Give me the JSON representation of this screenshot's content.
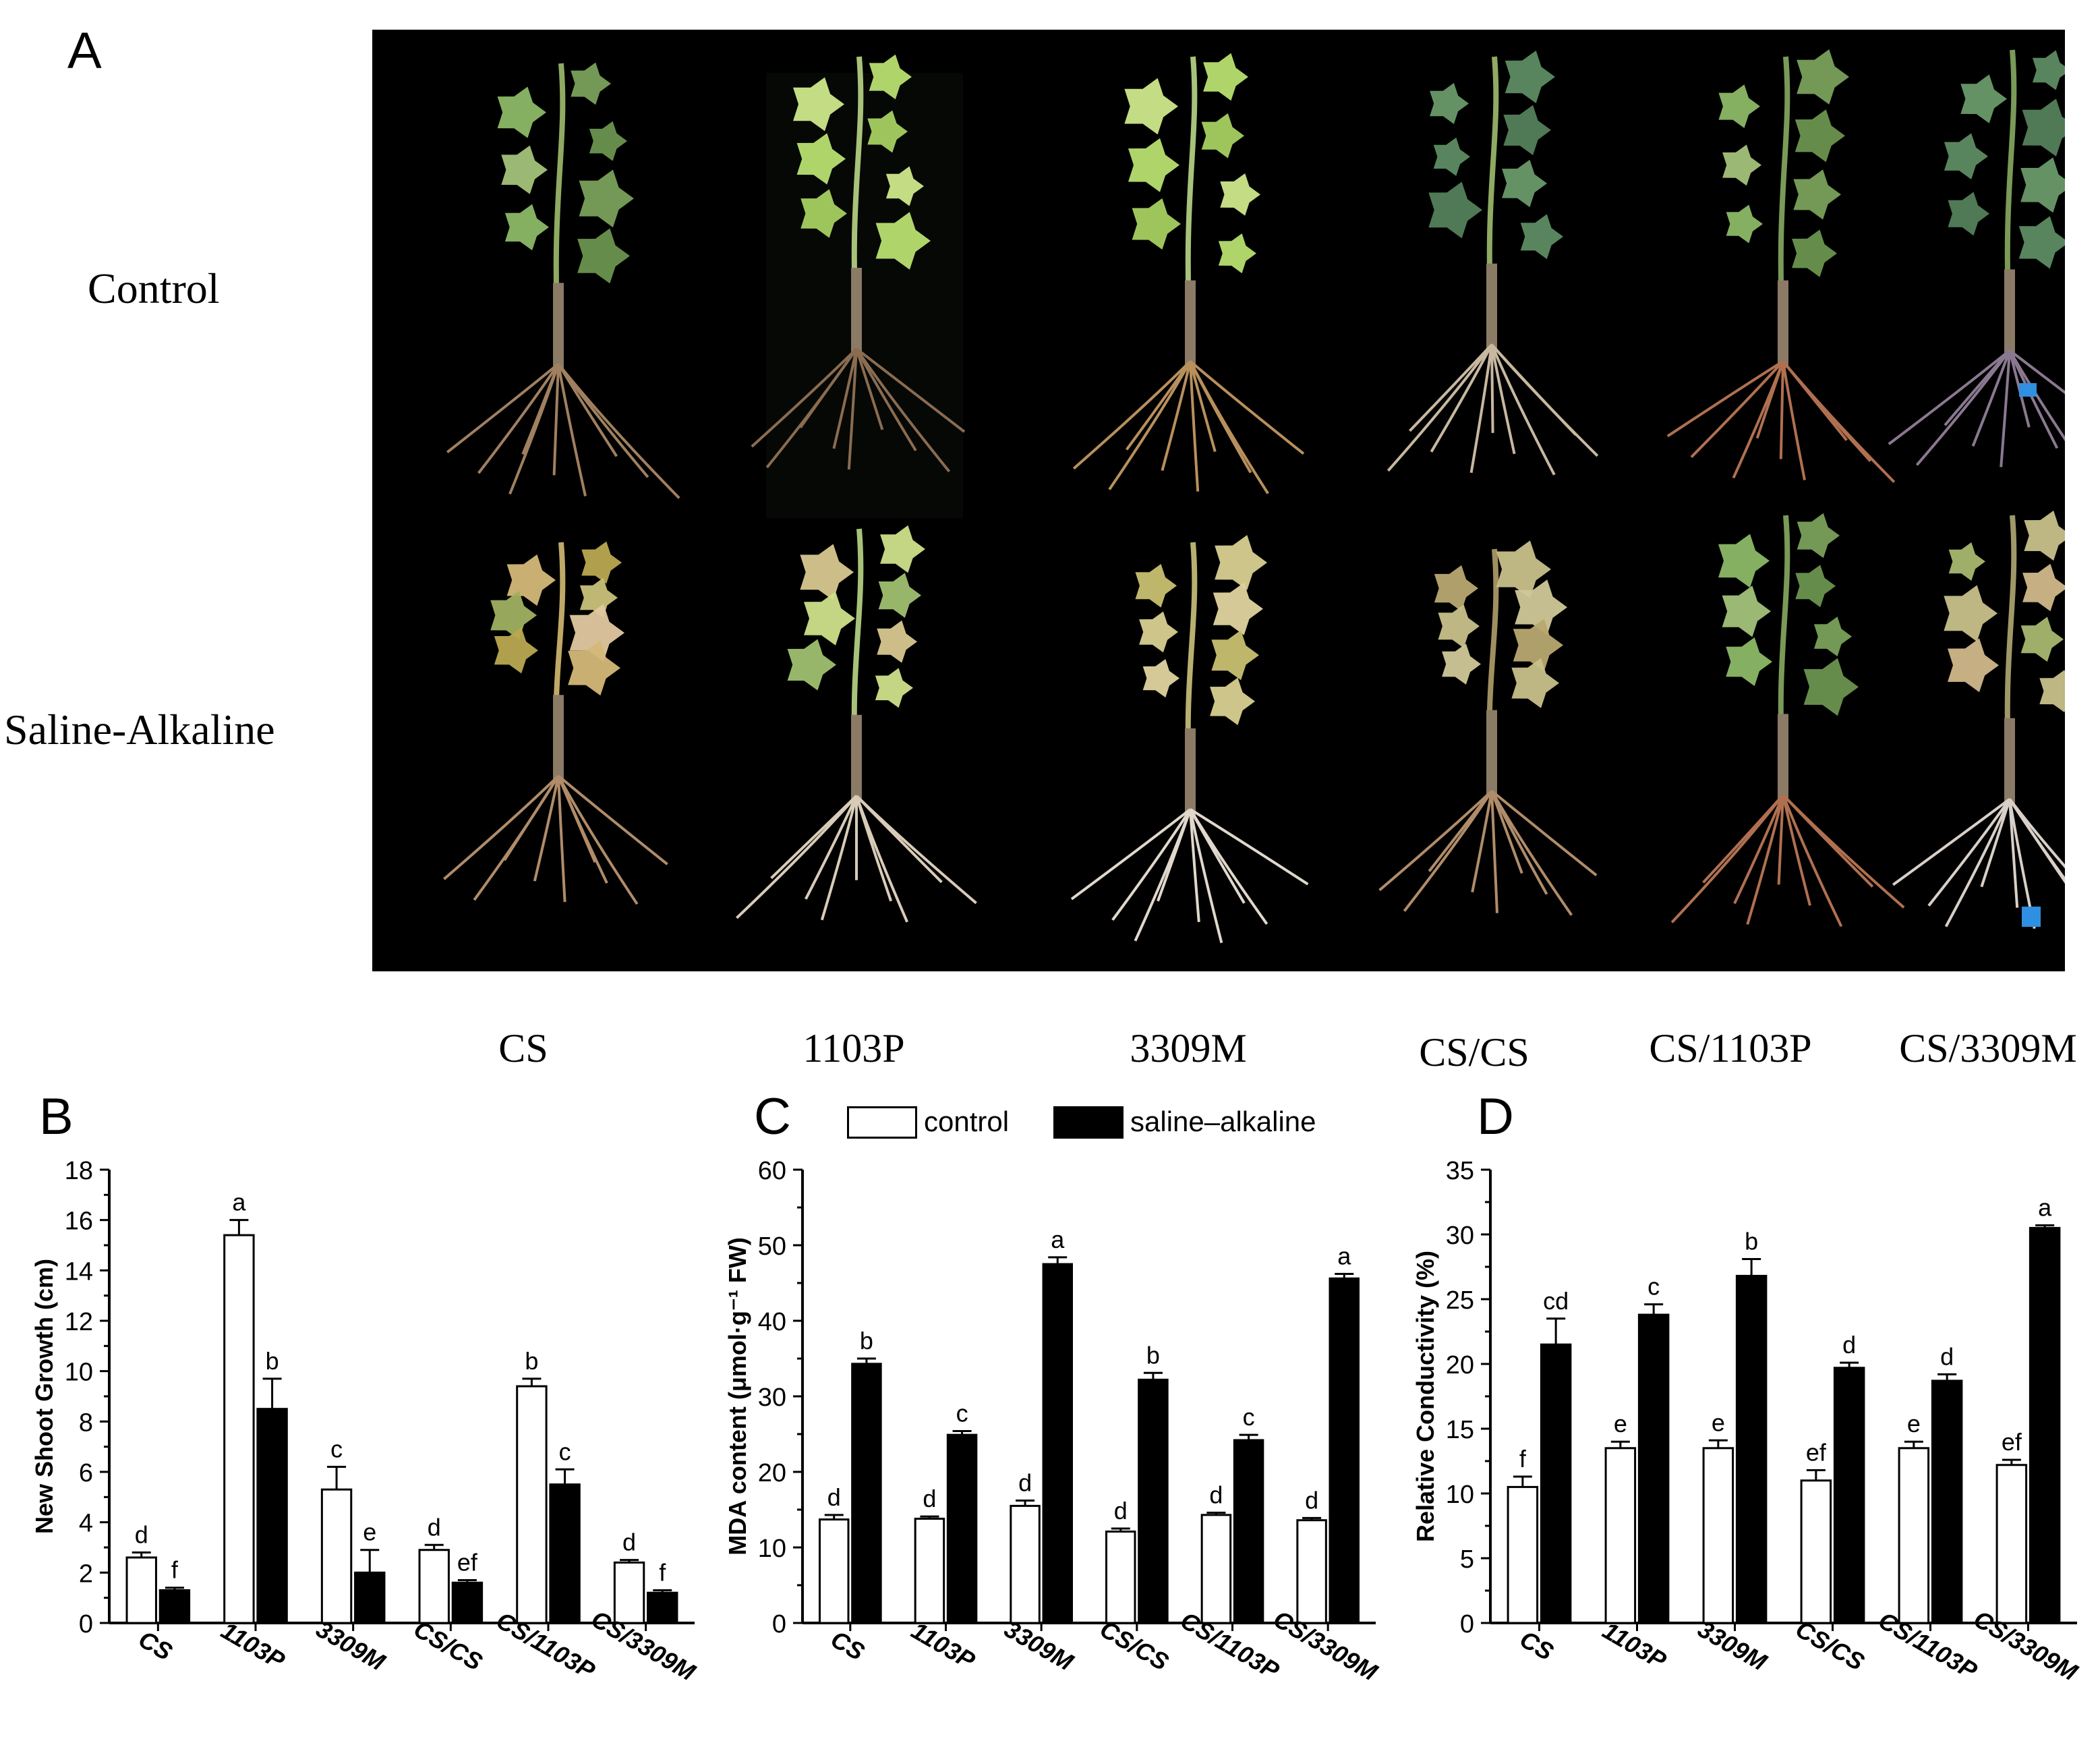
{
  "panels": {
    "a": "A",
    "b": "B",
    "c": "C",
    "d": "D"
  },
  "photo_panel": {
    "row_labels": [
      "Control",
      "Saline-Alkaline"
    ],
    "column_labels": [
      "CS",
      "1103P",
      "3309M",
      "CS/CS",
      "CS/1103P",
      "CS/3309M"
    ],
    "background": "#000000"
  },
  "legend": {
    "control": "control",
    "saline": "saline–alkaline"
  },
  "colors": {
    "control_fill": "#ffffff",
    "saline_fill": "#000000",
    "axis": "#000000"
  },
  "chart_data": [
    {
      "type": "bar",
      "panel": "B",
      "categories": [
        "CS",
        "1103P",
        "3309M",
        "CS/CS",
        "CS/1103P",
        "CS/3309M"
      ],
      "ylabel": "New Shoot Growth (cm)",
      "xlabel": "",
      "ylim": [
        0,
        18
      ],
      "yticks": [
        0,
        2,
        4,
        6,
        8,
        10,
        12,
        14,
        16,
        18
      ],
      "series": [
        {
          "name": "control",
          "values": [
            2.6,
            15.4,
            5.3,
            2.9,
            9.4,
            2.4
          ],
          "errors": [
            0.2,
            0.6,
            0.9,
            0.2,
            0.3,
            0.1
          ],
          "letters": [
            "d",
            "a",
            "c",
            "d",
            "b",
            "d"
          ]
        },
        {
          "name": "saline–alkaline",
          "values": [
            1.3,
            8.5,
            2.0,
            1.6,
            5.5,
            1.2
          ],
          "errors": [
            0.1,
            1.2,
            0.9,
            0.1,
            0.6,
            0.1
          ],
          "letters": [
            "f",
            "b",
            "e",
            "ef",
            "c",
            "f"
          ]
        }
      ]
    },
    {
      "type": "bar",
      "panel": "C",
      "categories": [
        "CS",
        "1103P",
        "3309M",
        "CS/CS",
        "CS/1103P",
        "CS/3309M"
      ],
      "ylabel": "MDA content (μmol·g⁻¹ FW)",
      "xlabel": "",
      "ylim": [
        0,
        60
      ],
      "yticks": [
        0,
        10,
        20,
        30,
        40,
        50,
        60
      ],
      "series": [
        {
          "name": "control",
          "values": [
            13.7,
            13.8,
            15.5,
            12.1,
            14.3,
            13.6
          ],
          "errors": [
            0.6,
            0.3,
            0.7,
            0.4,
            0.3,
            0.3
          ],
          "letters": [
            "d",
            "d",
            "d",
            "d",
            "d",
            "d"
          ]
        },
        {
          "name": "saline–alkaline",
          "values": [
            34.3,
            24.9,
            47.5,
            32.2,
            24.2,
            45.6
          ],
          "errors": [
            0.7,
            0.5,
            0.9,
            0.9,
            0.7,
            0.6
          ],
          "letters": [
            "b",
            "c",
            "a",
            "b",
            "c",
            "a"
          ]
        }
      ]
    },
    {
      "type": "bar",
      "panel": "D",
      "categories": [
        "CS",
        "1103P",
        "3309M",
        "CS/CS",
        "CS/1103P",
        "CS/3309M"
      ],
      "ylabel": "Relative Conductivity (%)",
      "xlabel": "",
      "ylim": [
        0,
        35
      ],
      "yticks": [
        0,
        5,
        10,
        15,
        20,
        25,
        30,
        35
      ],
      "series": [
        {
          "name": "control",
          "values": [
            10.5,
            13.5,
            13.5,
            11.0,
            13.5,
            12.2
          ],
          "errors": [
            0.8,
            0.5,
            0.6,
            0.8,
            0.5,
            0.4
          ],
          "letters": [
            "f",
            "e",
            "e",
            "ef",
            "e",
            "ef"
          ]
        },
        {
          "name": "saline–alkaline",
          "values": [
            21.5,
            23.8,
            26.8,
            19.7,
            18.7,
            30.5
          ],
          "errors": [
            2.0,
            0.8,
            1.3,
            0.4,
            0.5,
            0.2
          ],
          "letters": [
            "cd",
            "c",
            "b",
            "d",
            "d",
            "a"
          ]
        }
      ]
    }
  ]
}
